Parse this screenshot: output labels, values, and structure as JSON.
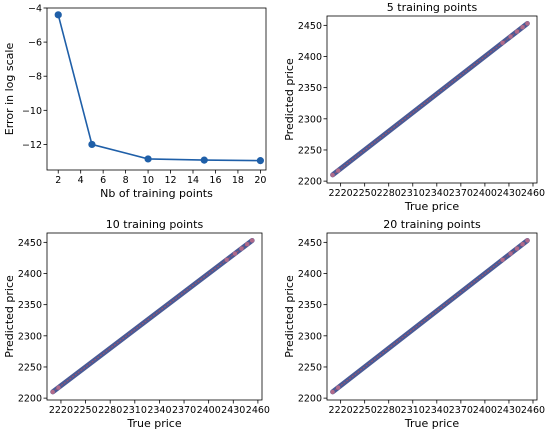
{
  "chart_data": [
    {
      "type": "line",
      "title": "",
      "xlabel": "Nb of training points",
      "ylabel": "Error in log scale",
      "xlim": [
        1,
        20.5
      ],
      "ylim": [
        -13.5,
        -4
      ],
      "xticks": [
        2,
        4,
        6,
        8,
        10,
        12,
        14,
        16,
        18,
        20
      ],
      "yticks": [
        -4,
        -6,
        -8,
        -10,
        -12
      ],
      "grid": false,
      "series": [
        {
          "color": "#1f5fa8",
          "x": [
            2,
            5,
            10,
            15,
            20
          ],
          "y": [
            -4.4,
            -12.0,
            -12.85,
            -12.92,
            -12.95
          ]
        }
      ]
    },
    {
      "type": "scatter",
      "title": "5 training points",
      "xlabel": "True price",
      "ylabel": "Predicted price",
      "xlim": [
        2203,
        2465
      ],
      "ylim": [
        2197,
        2465
      ],
      "xticks": [
        2220,
        2250,
        2280,
        2310,
        2340,
        2370,
        2400,
        2430,
        2460
      ],
      "yticks": [
        2200,
        2250,
        2300,
        2350,
        2400,
        2450
      ],
      "grid": false,
      "points": {
        "color": "#4a5a96",
        "x_range": [
          2210,
          2453
        ]
      },
      "outliers": {
        "color": "#b06a8a",
        "x": [
          2210,
          2217,
          2422,
          2432,
          2440,
          2447,
          2453
        ]
      },
      "reference_line": {
        "color": "#c0505a"
      }
    },
    {
      "type": "scatter",
      "title": "10 training points",
      "xlabel": "True price",
      "ylabel": "Predicted price",
      "xlim": [
        2203,
        2465
      ],
      "ylim": [
        2197,
        2465
      ],
      "xticks": [
        2220,
        2250,
        2280,
        2310,
        2340,
        2370,
        2400,
        2430,
        2460
      ],
      "yticks": [
        2200,
        2250,
        2300,
        2350,
        2400,
        2450
      ],
      "grid": false,
      "points": {
        "color": "#4a5a96",
        "x_range": [
          2210,
          2453
        ]
      },
      "outliers": {
        "color": "#b06a8a",
        "x": [
          2210,
          2217,
          2422,
          2432,
          2440,
          2447,
          2453
        ]
      },
      "reference_line": {
        "color": "#c0505a"
      }
    },
    {
      "type": "scatter",
      "title": "20 training points",
      "xlabel": "True price",
      "ylabel": "Predicted price",
      "xlim": [
        2203,
        2465
      ],
      "ylim": [
        2197,
        2465
      ],
      "xticks": [
        2220,
        2250,
        2280,
        2310,
        2340,
        2370,
        2400,
        2430,
        2460
      ],
      "yticks": [
        2200,
        2250,
        2300,
        2350,
        2400,
        2450
      ],
      "grid": false,
      "points": {
        "color": "#4a5a96",
        "x_range": [
          2210,
          2453
        ]
      },
      "outliers": {
        "color": "#b06a8a",
        "x": [
          2210,
          2217,
          2422,
          2432,
          2440,
          2447,
          2453
        ]
      },
      "reference_line": {
        "color": "#c0505a"
      }
    }
  ]
}
